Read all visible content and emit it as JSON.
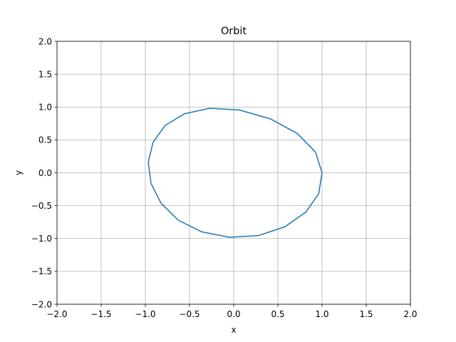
{
  "chart_data": {
    "type": "line",
    "title": "Orbit",
    "xlabel": "x",
    "ylabel": "y",
    "xlim": [
      -2.0,
      2.0
    ],
    "ylim": [
      -2.0,
      2.0
    ],
    "xticks": [
      -2.0,
      -1.5,
      -1.0,
      -0.5,
      0.0,
      0.5,
      1.0,
      1.5,
      2.0
    ],
    "yticks": [
      -2.0,
      -1.5,
      -1.0,
      -0.5,
      0.0,
      0.5,
      1.0,
      1.5,
      2.0
    ],
    "xtick_labels": [
      "−2.0",
      "−1.5",
      "−1.0",
      "−0.5",
      "0.0",
      "0.5",
      "1.0",
      "1.5",
      "2.0"
    ],
    "ytick_labels": [
      "−2.0",
      "−1.5",
      "−1.0",
      "−0.5",
      "0.0",
      "0.5",
      "1.0",
      "1.5",
      "2.0"
    ],
    "grid": true,
    "series": [
      {
        "color": "#1f77b4",
        "x": [
          1.0,
          0.926,
          0.719,
          0.414,
          0.065,
          -0.272,
          -0.557,
          -0.775,
          -0.913,
          -0.967,
          -0.936,
          -0.822,
          -0.628,
          -0.364,
          -0.049,
          0.281,
          0.58,
          0.817,
          0.963,
          1.0
        ],
        "y": [
          0.0,
          0.315,
          0.598,
          0.821,
          0.955,
          0.981,
          0.898,
          0.721,
          0.464,
          0.162,
          -0.162,
          -0.464,
          -0.721,
          -0.898,
          -0.981,
          -0.955,
          -0.821,
          -0.598,
          -0.315,
          0.0
        ]
      }
    ]
  }
}
